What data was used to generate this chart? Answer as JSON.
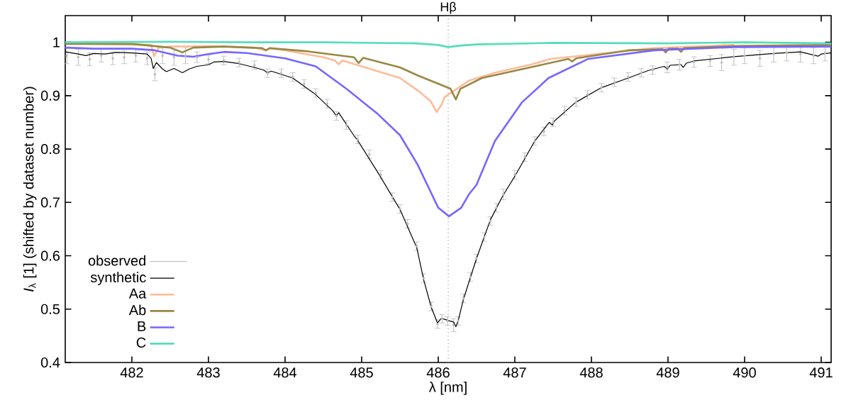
{
  "chart_data": {
    "type": "line",
    "xlabel": "λ [nm]",
    "ylabel": "*I*$_{λ}$ [1] (shifted by dataset number)",
    "xlim": [
      481.13,
      491.13
    ],
    "ylim": [
      0.4,
      1.05
    ],
    "xticks": [
      482,
      483,
      484,
      485,
      486,
      487,
      488,
      489,
      490,
      491
    ],
    "yticks": [
      0.4,
      0.5,
      0.6,
      0.7,
      0.8,
      0.9,
      1
    ],
    "grid": false,
    "legend": "bottom left",
    "line_style": "solid",
    "ref_lines": [
      {
        "axis": "x",
        "value": 486.13,
        "label": "Hβ",
        "color": "#999999",
        "line_style": "dotted"
      }
    ],
    "series": [
      {
        "name": "observed",
        "type": "scatter",
        "marker": "circle",
        "color": "#bbbbbb",
        "x": [
          481.15,
          481.3,
          481.45,
          481.6,
          481.75,
          481.9,
          482.05,
          482.2,
          482.3,
          482.4,
          482.55,
          482.7,
          482.85,
          483.0,
          483.2,
          483.4,
          483.6,
          483.77,
          483.95,
          484.1,
          484.25,
          484.4,
          484.55,
          484.67,
          484.8,
          484.95,
          485.1,
          485.25,
          485.4,
          485.5,
          485.6,
          485.72,
          485.81,
          485.91,
          485.99,
          486.05,
          486.12,
          486.2,
          486.26,
          486.33,
          486.42,
          486.5,
          486.6,
          486.68,
          486.76,
          486.85,
          487.0,
          487.13,
          487.26,
          487.38,
          487.5,
          487.65,
          487.8,
          487.95,
          488.13,
          488.3,
          488.48,
          488.65,
          488.8,
          488.99,
          489.15,
          489.34,
          489.55,
          489.7,
          489.86,
          490.0,
          490.2,
          490.38,
          490.55,
          490.73,
          490.9,
          491.05
        ],
        "values": [
          0.975,
          0.972,
          0.968,
          0.975,
          0.97,
          0.972,
          0.975,
          0.97,
          0.94,
          0.975,
          0.972,
          0.975,
          0.972,
          0.968,
          0.966,
          0.962,
          0.957,
          0.942,
          0.942,
          0.935,
          0.922,
          0.905,
          0.885,
          0.862,
          0.845,
          0.818,
          0.79,
          0.752,
          0.71,
          0.688,
          0.66,
          0.618,
          0.558,
          0.505,
          0.472,
          0.482,
          0.478,
          0.47,
          0.478,
          0.52,
          0.56,
          0.595,
          0.635,
          0.665,
          0.69,
          0.715,
          0.752,
          0.785,
          0.815,
          0.833,
          0.85,
          0.872,
          0.888,
          0.902,
          0.915,
          0.925,
          0.935,
          0.943,
          0.948,
          0.953,
          0.958,
          0.963,
          0.965,
          0.962,
          0.972,
          0.975,
          0.97,
          0.978,
          0.98,
          0.978,
          0.975,
          0.98
        ],
        "errors": [
          0.015,
          0.015,
          0.012,
          0.012,
          0.012,
          0.012,
          0.012,
          0.012,
          0.012,
          0.015,
          0.015,
          0.015,
          0.01,
          0.008,
          0.008,
          0.008,
          0.008,
          0.008,
          0.008,
          0.008,
          0.008,
          0.008,
          0.008,
          0.008,
          0.008,
          0.008,
          0.008,
          0.008,
          0.008,
          0.008,
          0.008,
          0.008,
          0.008,
          0.008,
          0.008,
          0.008,
          0.008,
          0.012,
          0.008,
          0.008,
          0.008,
          0.008,
          0.008,
          0.008,
          0.008,
          0.01,
          0.008,
          0.008,
          0.008,
          0.008,
          0.008,
          0.008,
          0.008,
          0.008,
          0.008,
          0.008,
          0.008,
          0.008,
          0.008,
          0.01,
          0.01,
          0.01,
          0.01,
          0.015,
          0.015,
          0.015,
          0.015,
          0.015,
          0.015,
          0.015,
          0.015,
          0.015
        ]
      },
      {
        "name": "synthetic",
        "color": "#000000",
        "x": [
          481.13,
          481.3,
          481.4,
          481.5,
          481.65,
          481.8,
          482.0,
          482.2,
          482.25,
          482.28,
          482.32,
          482.4,
          482.45,
          482.55,
          482.66,
          482.75,
          482.85,
          483.0,
          483.07,
          483.2,
          483.4,
          483.6,
          483.72,
          483.77,
          483.82,
          484.1,
          484.4,
          484.62,
          484.67,
          484.7,
          484.9,
          484.94,
          485.22,
          485.5,
          485.72,
          485.81,
          485.91,
          485.99,
          486.04,
          486.15,
          486.2,
          486.23,
          486.26,
          486.33,
          486.5,
          486.68,
          486.83,
          487.02,
          487.26,
          487.45,
          487.49,
          487.52,
          487.79,
          488.13,
          488.48,
          488.74,
          488.95,
          488.99,
          489.03,
          489.17,
          489.2,
          489.24,
          489.34,
          489.86,
          490.38,
          490.73,
          490.96,
          491.0,
          491.13
        ],
        "values": [
          0.982,
          0.978,
          0.975,
          0.979,
          0.978,
          0.981,
          0.98,
          0.978,
          0.97,
          0.951,
          0.962,
          0.95,
          0.945,
          0.951,
          0.943,
          0.95,
          0.955,
          0.958,
          0.963,
          0.964,
          0.96,
          0.953,
          0.948,
          0.943,
          0.946,
          0.933,
          0.902,
          0.872,
          0.862,
          0.868,
          0.825,
          0.818,
          0.754,
          0.687,
          0.615,
          0.555,
          0.503,
          0.474,
          0.483,
          0.478,
          0.476,
          0.467,
          0.478,
          0.519,
          0.595,
          0.667,
          0.709,
          0.754,
          0.815,
          0.85,
          0.845,
          0.853,
          0.887,
          0.915,
          0.933,
          0.947,
          0.955,
          0.95,
          0.957,
          0.958,
          0.953,
          0.961,
          0.965,
          0.973,
          0.979,
          0.982,
          0.974,
          0.978,
          0.98
        ]
      },
      {
        "name": "Aa",
        "color": "#ffbb99",
        "x": [
          481.13,
          482.25,
          482.29,
          482.35,
          482.5,
          483.0,
          483.6,
          483.75,
          483.8,
          484.0,
          484.5,
          484.65,
          484.7,
          484.75,
          485.0,
          485.5,
          485.73,
          485.9,
          485.98,
          486.05,
          486.08,
          486.4,
          486.74,
          487.23,
          487.47,
          488.13,
          488.82,
          489.86
        ],
        "values": [
          0.998,
          0.995,
          0.974,
          0.99,
          0.992,
          0.993,
          0.99,
          0.985,
          0.989,
          0.985,
          0.972,
          0.966,
          0.959,
          0.966,
          0.955,
          0.933,
          0.91,
          0.89,
          0.869,
          0.885,
          0.897,
          0.928,
          0.943,
          0.959,
          0.969,
          0.979,
          0.989,
          0.995
        ]
      },
      {
        "name": "Ab",
        "color": "#998844",
        "x": [
          481.13,
          482.0,
          482.5,
          482.66,
          482.8,
          483.2,
          483.7,
          483.75,
          483.8,
          484.3,
          484.9,
          484.96,
          485.02,
          485.5,
          485.73,
          486.16,
          486.23,
          486.29,
          486.57,
          487.23,
          487.7,
          487.75,
          487.8,
          488.48,
          488.93,
          488.97,
          489.01,
          489.13,
          489.17,
          489.21,
          489.86,
          491.13
        ],
        "values": [
          0.997,
          0.997,
          0.99,
          0.981,
          0.99,
          0.992,
          0.989,
          0.985,
          0.989,
          0.983,
          0.972,
          0.961,
          0.971,
          0.953,
          0.938,
          0.913,
          0.893,
          0.913,
          0.933,
          0.954,
          0.969,
          0.964,
          0.97,
          0.985,
          0.987,
          0.981,
          0.988,
          0.988,
          0.982,
          0.989,
          0.993,
          0.995
        ]
      },
      {
        "name": "B",
        "color": "#7766ff",
        "x": [
          481.13,
          481.5,
          482.0,
          482.3,
          482.6,
          482.8,
          483.0,
          483.2,
          483.5,
          484.0,
          484.4,
          484.8,
          485.2,
          485.5,
          485.73,
          485.9,
          486.0,
          486.14,
          486.3,
          486.4,
          486.5,
          486.74,
          487.09,
          487.44,
          487.96,
          488.82,
          489.86,
          491.13
        ],
        "values": [
          0.99,
          0.988,
          0.988,
          0.985,
          0.975,
          0.973,
          0.978,
          0.982,
          0.98,
          0.97,
          0.955,
          0.913,
          0.867,
          0.826,
          0.771,
          0.72,
          0.69,
          0.674,
          0.69,
          0.715,
          0.733,
          0.815,
          0.887,
          0.933,
          0.969,
          0.985,
          0.991,
          0.992
        ]
      },
      {
        "name": "C",
        "color": "#55ddbb",
        "x": [
          481.13,
          482.5,
          483.5,
          484.5,
          485.71,
          486.0,
          486.13,
          486.3,
          486.5,
          487.5,
          489.0,
          490.0,
          491.13
        ],
        "values": [
          1.0,
          1.001,
          1.0,
          1.0,
          0.998,
          0.995,
          0.991,
          0.994,
          0.996,
          0.999,
          0.998,
          1.0,
          0.998
        ]
      }
    ]
  }
}
